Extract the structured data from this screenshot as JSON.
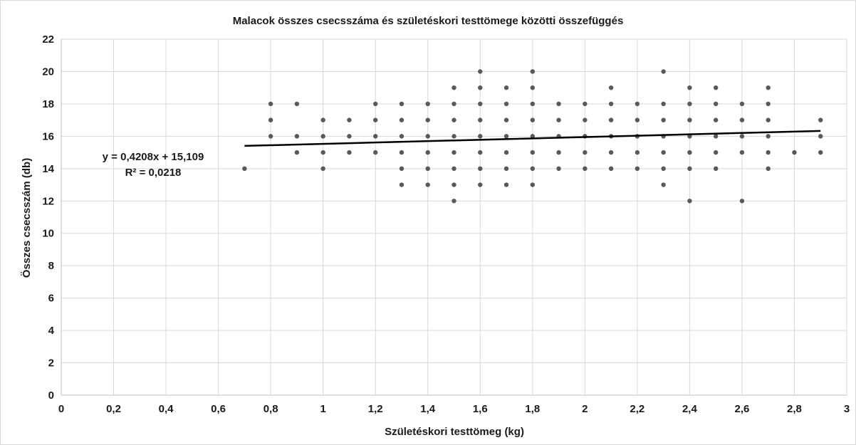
{
  "chart_data": {
    "type": "scatter",
    "title": "Malacok összes csecsszáma és születéskori testtömege közötti összefüggés",
    "xlabel": "Születéskori testtömeg (kg)",
    "ylabel": "Összes csecsszám (db)",
    "xlim": [
      0,
      3
    ],
    "ylim": [
      0,
      22
    ],
    "x_ticks": [
      "0",
      "0,2",
      "0,4",
      "0,6",
      "0,8",
      "1",
      "1,2",
      "1,4",
      "1,6",
      "1,8",
      "2",
      "2,2",
      "2,4",
      "2,6",
      "2,8",
      "3"
    ],
    "y_ticks": [
      "0",
      "2",
      "4",
      "6",
      "8",
      "10",
      "12",
      "14",
      "16",
      "18",
      "20",
      "22"
    ],
    "grid": true,
    "marker_color": "#595959",
    "trendline_color": "#000000",
    "trendline": {
      "slope": 0.4208,
      "intercept": 15.109,
      "x_range": [
        0.7,
        2.9
      ],
      "equation_label": "y = 0,4208x + 15,109",
      "r2_label": "R² = 0,0218"
    },
    "points": [
      [
        0.7,
        14
      ],
      [
        0.8,
        16
      ],
      [
        0.8,
        17
      ],
      [
        0.8,
        18
      ],
      [
        0.9,
        15
      ],
      [
        0.9,
        16
      ],
      [
        0.9,
        18
      ],
      [
        1.0,
        14
      ],
      [
        1.0,
        15
      ],
      [
        1.0,
        16
      ],
      [
        1.0,
        17
      ],
      [
        1.1,
        15
      ],
      [
        1.1,
        16
      ],
      [
        1.1,
        17
      ],
      [
        1.2,
        15
      ],
      [
        1.2,
        16
      ],
      [
        1.2,
        17
      ],
      [
        1.2,
        18
      ],
      [
        1.3,
        13
      ],
      [
        1.3,
        14
      ],
      [
        1.3,
        15
      ],
      [
        1.3,
        16
      ],
      [
        1.3,
        17
      ],
      [
        1.3,
        18
      ],
      [
        1.4,
        13
      ],
      [
        1.4,
        14
      ],
      [
        1.4,
        15
      ],
      [
        1.4,
        16
      ],
      [
        1.4,
        17
      ],
      [
        1.4,
        18
      ],
      [
        1.5,
        12
      ],
      [
        1.5,
        13
      ],
      [
        1.5,
        14
      ],
      [
        1.5,
        15
      ],
      [
        1.5,
        16
      ],
      [
        1.5,
        17
      ],
      [
        1.5,
        18
      ],
      [
        1.5,
        19
      ],
      [
        1.6,
        13
      ],
      [
        1.6,
        14
      ],
      [
        1.6,
        15
      ],
      [
        1.6,
        16
      ],
      [
        1.6,
        17
      ],
      [
        1.6,
        18
      ],
      [
        1.6,
        19
      ],
      [
        1.6,
        20
      ],
      [
        1.7,
        13
      ],
      [
        1.7,
        14
      ],
      [
        1.7,
        15
      ],
      [
        1.7,
        16
      ],
      [
        1.7,
        17
      ],
      [
        1.7,
        18
      ],
      [
        1.7,
        19
      ],
      [
        1.8,
        13
      ],
      [
        1.8,
        14
      ],
      [
        1.8,
        15
      ],
      [
        1.8,
        16
      ],
      [
        1.8,
        17
      ],
      [
        1.8,
        18
      ],
      [
        1.8,
        19
      ],
      [
        1.8,
        20
      ],
      [
        1.9,
        14
      ],
      [
        1.9,
        15
      ],
      [
        1.9,
        16
      ],
      [
        1.9,
        17
      ],
      [
        1.9,
        18
      ],
      [
        2.0,
        14
      ],
      [
        2.0,
        15
      ],
      [
        2.0,
        16
      ],
      [
        2.0,
        17
      ],
      [
        2.0,
        18
      ],
      [
        2.1,
        14
      ],
      [
        2.1,
        15
      ],
      [
        2.1,
        16
      ],
      [
        2.1,
        17
      ],
      [
        2.1,
        18
      ],
      [
        2.1,
        19
      ],
      [
        2.2,
        14
      ],
      [
        2.2,
        15
      ],
      [
        2.2,
        16
      ],
      [
        2.2,
        17
      ],
      [
        2.2,
        18
      ],
      [
        2.3,
        13
      ],
      [
        2.3,
        14
      ],
      [
        2.3,
        15
      ],
      [
        2.3,
        16
      ],
      [
        2.3,
        17
      ],
      [
        2.3,
        18
      ],
      [
        2.3,
        20
      ],
      [
        2.4,
        12
      ],
      [
        2.4,
        14
      ],
      [
        2.4,
        15
      ],
      [
        2.4,
        16
      ],
      [
        2.4,
        17
      ],
      [
        2.4,
        18
      ],
      [
        2.4,
        19
      ],
      [
        2.5,
        14
      ],
      [
        2.5,
        15
      ],
      [
        2.5,
        16
      ],
      [
        2.5,
        17
      ],
      [
        2.5,
        18
      ],
      [
        2.5,
        19
      ],
      [
        2.6,
        12
      ],
      [
        2.6,
        15
      ],
      [
        2.6,
        16
      ],
      [
        2.6,
        17
      ],
      [
        2.6,
        18
      ],
      [
        2.7,
        14
      ],
      [
        2.7,
        15
      ],
      [
        2.7,
        16
      ],
      [
        2.7,
        17
      ],
      [
        2.7,
        18
      ],
      [
        2.7,
        19
      ],
      [
        2.8,
        15
      ],
      [
        2.9,
        15
      ],
      [
        2.9,
        16
      ],
      [
        2.9,
        17
      ]
    ]
  }
}
